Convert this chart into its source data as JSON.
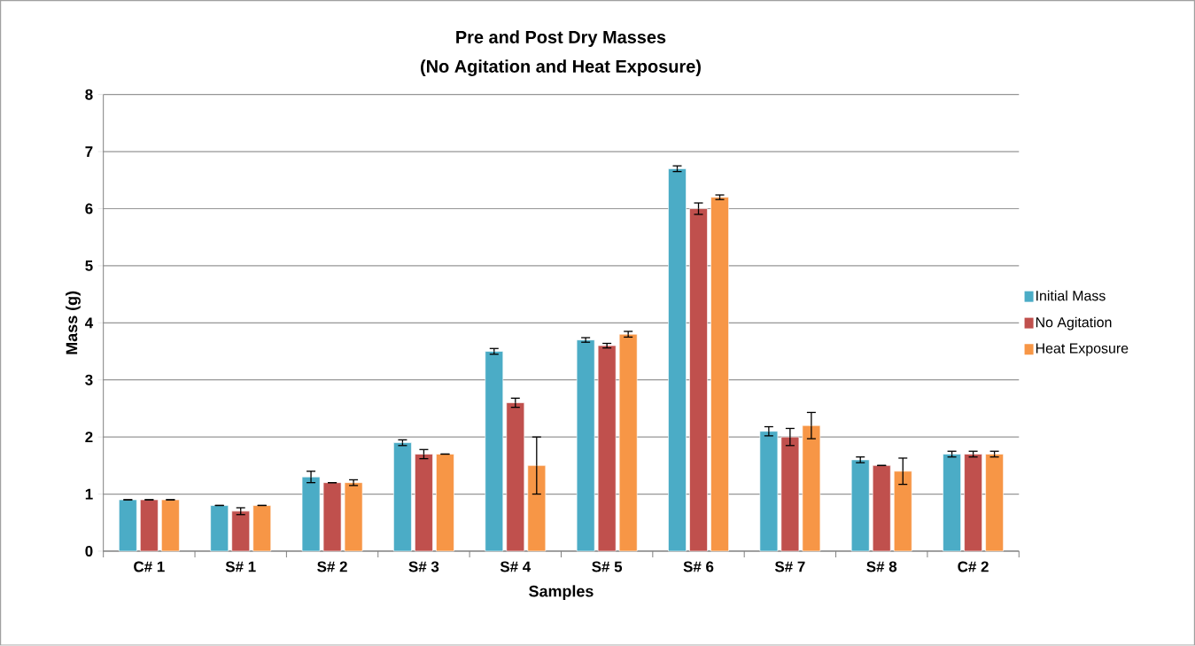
{
  "chart_data": {
    "type": "bar",
    "title": "Pre and Post Dry  Masses",
    "subtitle": "(No Agitation and Heat Exposure)",
    "xlabel": "Samples",
    "ylabel": "Mass (g)",
    "categories": [
      "C# 1",
      "S# 1",
      "S# 2",
      "S# 3",
      "S# 4",
      "S# 5",
      "S# 6",
      "S# 7",
      "S# 8",
      "C# 2"
    ],
    "series": [
      {
        "name": "Initial Mass",
        "color": "#4bacc6",
        "values": [
          0.9,
          0.8,
          1.3,
          1.9,
          3.5,
          3.7,
          6.7,
          2.1,
          1.6,
          1.7
        ],
        "errors": [
          0,
          0,
          0.1,
          0.05,
          0.05,
          0.04,
          0.05,
          0.08,
          0.05,
          0.05
        ]
      },
      {
        "name": "No Agitation",
        "color": "#c0504d",
        "values": [
          0.9,
          0.7,
          1.2,
          1.7,
          2.6,
          3.6,
          6.0,
          2.0,
          1.5,
          1.7
        ],
        "errors": [
          0,
          0.06,
          0,
          0.08,
          0.08,
          0.04,
          0.1,
          0.15,
          0,
          0.05
        ]
      },
      {
        "name": "Heat Exposure",
        "color": "#f79646",
        "values": [
          0.9,
          0.8,
          1.2,
          1.7,
          1.5,
          3.8,
          6.2,
          2.2,
          1.4,
          1.7
        ],
        "errors": [
          0,
          0,
          0.05,
          0,
          0.5,
          0.05,
          0.04,
          0.23,
          0.23,
          0.05
        ]
      }
    ],
    "ylim": [
      0,
      8
    ],
    "yticks": [
      0,
      1,
      2,
      3,
      4,
      5,
      6,
      7,
      8
    ],
    "grid": "y",
    "legend": "right"
  }
}
